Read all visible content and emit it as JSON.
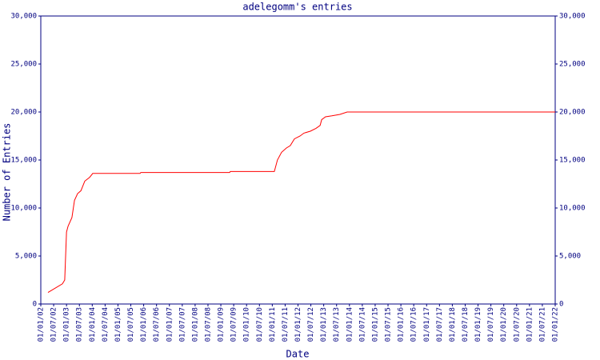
{
  "chart_data": {
    "type": "line",
    "title": "adelegomm's entries",
    "x_label": "Date",
    "y_label": "Number of Entries",
    "color": "#ff0000",
    "axis_color": "#000080",
    "x": [
      2002.28,
      2002.84,
      2002.93,
      2003.0,
      2003.06,
      2003.21,
      2003.31,
      2003.43,
      2003.56,
      2003.71,
      2003.9,
      2004.02,
      2005.86,
      2005.89,
      2009.34,
      2009.37,
      2011.08,
      2011.2,
      2011.36,
      2011.55,
      2011.7,
      2011.86,
      2012.08,
      2012.23,
      2012.48,
      2012.7,
      2012.86,
      2012.92,
      2013.07,
      2013.32,
      2013.63,
      2013.91,
      2022.0
    ],
    "values": [
      1200,
      2100,
      2500,
      7500,
      8100,
      9000,
      10800,
      11500,
      11800,
      12800,
      13200,
      13600,
      13600,
      13700,
      13700,
      13800,
      13800,
      15000,
      15800,
      16250,
      16500,
      17200,
      17500,
      17800,
      18000,
      18300,
      18600,
      19200,
      19500,
      19600,
      19750,
      20000,
      20000
    ],
    "xlim": [
      2002,
      2022
    ],
    "xticks": [
      {
        "value": 2002,
        "label": "01/01/02"
      },
      {
        "value": 2002.5,
        "label": "01/07/02"
      },
      {
        "value": 2003,
        "label": "01/01/03"
      },
      {
        "value": 2003.5,
        "label": "01/07/03"
      },
      {
        "value": 2004,
        "label": "01/01/04"
      },
      {
        "value": 2004.5,
        "label": "01/07/04"
      },
      {
        "value": 2005,
        "label": "01/01/05"
      },
      {
        "value": 2005.5,
        "label": "01/07/05"
      },
      {
        "value": 2006,
        "label": "01/01/06"
      },
      {
        "value": 2006.5,
        "label": "01/07/06"
      },
      {
        "value": 2007,
        "label": "01/01/07"
      },
      {
        "value": 2007.5,
        "label": "01/07/07"
      },
      {
        "value": 2008,
        "label": "01/01/08"
      },
      {
        "value": 2008.5,
        "label": "01/07/08"
      },
      {
        "value": 2009,
        "label": "01/01/09"
      },
      {
        "value": 2009.5,
        "label": "01/07/09"
      },
      {
        "value": 2010,
        "label": "01/01/10"
      },
      {
        "value": 2010.5,
        "label": "01/07/10"
      },
      {
        "value": 2011,
        "label": "01/01/11"
      },
      {
        "value": 2011.5,
        "label": "01/07/11"
      },
      {
        "value": 2012,
        "label": "01/01/12"
      },
      {
        "value": 2012.5,
        "label": "01/07/12"
      },
      {
        "value": 2013,
        "label": "01/01/13"
      },
      {
        "value": 2013.5,
        "label": "01/07/13"
      },
      {
        "value": 2014,
        "label": "01/01/14"
      },
      {
        "value": 2014.5,
        "label": "01/07/14"
      },
      {
        "value": 2015,
        "label": "01/01/15"
      },
      {
        "value": 2015.5,
        "label": "01/07/15"
      },
      {
        "value": 2016,
        "label": "01/01/16"
      },
      {
        "value": 2016.5,
        "label": "01/07/16"
      },
      {
        "value": 2017,
        "label": "01/01/17"
      },
      {
        "value": 2017.5,
        "label": "01/07/17"
      },
      {
        "value": 2018,
        "label": "01/01/18"
      },
      {
        "value": 2018.5,
        "label": "01/07/18"
      },
      {
        "value": 2019,
        "label": "01/01/19"
      },
      {
        "value": 2019.5,
        "label": "01/07/19"
      },
      {
        "value": 2020,
        "label": "01/01/20"
      },
      {
        "value": 2020.5,
        "label": "01/07/20"
      },
      {
        "value": 2021,
        "label": "01/01/21"
      },
      {
        "value": 2021.5,
        "label": "01/07/21"
      },
      {
        "value": 2022,
        "label": "01/01/22"
      }
    ],
    "ylim": [
      0,
      30000
    ],
    "yticks": [
      0,
      {
        "value": 5000,
        "label": "5,000"
      },
      {
        "value": 10000,
        "label": "10,000"
      },
      {
        "value": 15000,
        "label": "15,000"
      },
      {
        "value": 20000,
        "label": "20,000"
      },
      {
        "value": 25000,
        "label": "25,000"
      },
      {
        "value": 30000,
        "label": "30,000"
      }
    ],
    "y2lim": [
      0,
      30000
    ],
    "y2ticks": [
      0,
      {
        "value": 5000,
        "label": "5,000"
      },
      {
        "value": 10000,
        "label": "10,000"
      },
      {
        "value": 15000,
        "label": "15,000"
      },
      {
        "value": 20000,
        "label": "20,000"
      },
      {
        "value": 25000,
        "label": "25,000"
      },
      {
        "value": 30000,
        "label": "30,000"
      }
    ]
  }
}
